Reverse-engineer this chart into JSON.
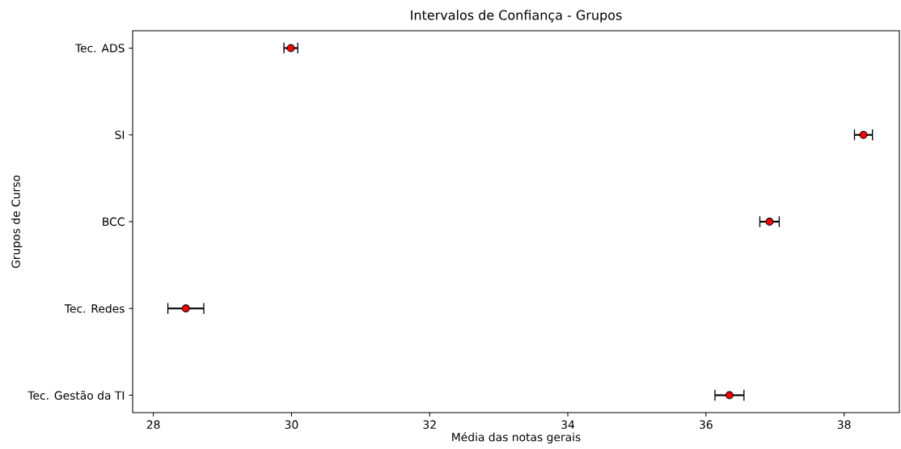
{
  "chart_data": {
    "type": "scatter",
    "orientation": "horizontal",
    "title": "Intervalos de Confiança - Grupos",
    "xlabel": "Média das notas gerais",
    "ylabel": "Grupos de Curso",
    "categories": [
      "Tec. ADS",
      "SI",
      "BCC",
      "Tec. Redes",
      "Tec. Gestão da TI"
    ],
    "values": [
      29.99,
      38.28,
      36.92,
      28.47,
      36.34
    ],
    "errors": [
      0.1,
      0.13,
      0.14,
      0.26,
      0.21
    ],
    "color": "#ff0000",
    "marker": "circle",
    "xlim": [
      27.7,
      38.8
    ],
    "xticks": [
      28,
      30,
      32,
      34,
      36,
      38
    ],
    "grid": false
  }
}
